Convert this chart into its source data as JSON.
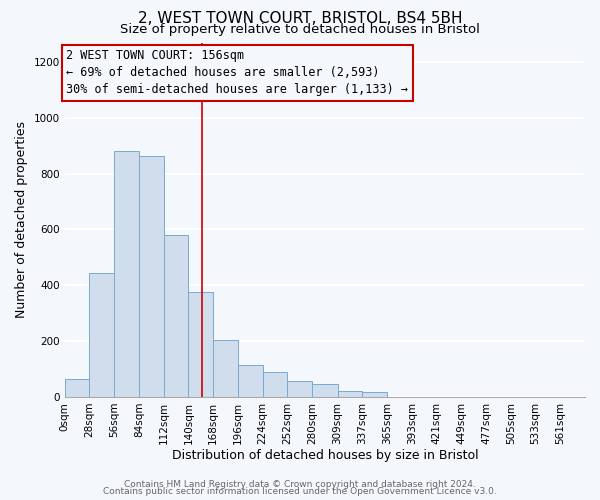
{
  "title": "2, WEST TOWN COURT, BRISTOL, BS4 5BH",
  "subtitle": "Size of property relative to detached houses in Bristol",
  "xlabel": "Distribution of detached houses by size in Bristol",
  "ylabel": "Number of detached properties",
  "bar_left_edges": [
    0,
    28,
    56,
    84,
    112,
    140,
    168,
    196,
    224,
    252,
    280,
    309,
    337,
    365,
    393,
    421,
    449,
    477,
    505,
    533
  ],
  "bar_widths": [
    28,
    28,
    28,
    28,
    28,
    28,
    28,
    28,
    28,
    28,
    29,
    28,
    28,
    28,
    28,
    28,
    28,
    28,
    28,
    28
  ],
  "bar_heights": [
    65,
    445,
    880,
    865,
    580,
    375,
    205,
    115,
    88,
    57,
    48,
    22,
    17,
    0,
    0,
    0,
    0,
    0,
    0,
    0
  ],
  "bar_color": "#cfdded",
  "bar_edgecolor": "#7aaace",
  "tick_labels": [
    "0sqm",
    "28sqm",
    "56sqm",
    "84sqm",
    "112sqm",
    "140sqm",
    "168sqm",
    "196sqm",
    "224sqm",
    "252sqm",
    "280sqm",
    "309sqm",
    "337sqm",
    "365sqm",
    "393sqm",
    "421sqm",
    "449sqm",
    "477sqm",
    "505sqm",
    "533sqm",
    "561sqm"
  ],
  "ylim": [
    0,
    1270
  ],
  "yticks": [
    0,
    200,
    400,
    600,
    800,
    1000,
    1200
  ],
  "xlim_max": 589,
  "property_size": 156,
  "vline_color": "#cc0000",
  "annotation_line1": "2 WEST TOWN COURT: 156sqm",
  "annotation_line2": "← 69% of detached houses are smaller (2,593)",
  "annotation_line3": "30% of semi-detached houses are larger (1,133) →",
  "annotation_box_edgecolor": "#cc0000",
  "footer_line1": "Contains HM Land Registry data © Crown copyright and database right 2024.",
  "footer_line2": "Contains public sector information licensed under the Open Government Licence v3.0.",
  "background_color": "#f4f8fc",
  "grid_color": "#ffffff",
  "title_fontsize": 11,
  "subtitle_fontsize": 9.5,
  "axis_label_fontsize": 9,
  "tick_fontsize": 7.5,
  "annotation_fontsize": 8.5,
  "footer_fontsize": 6.5
}
